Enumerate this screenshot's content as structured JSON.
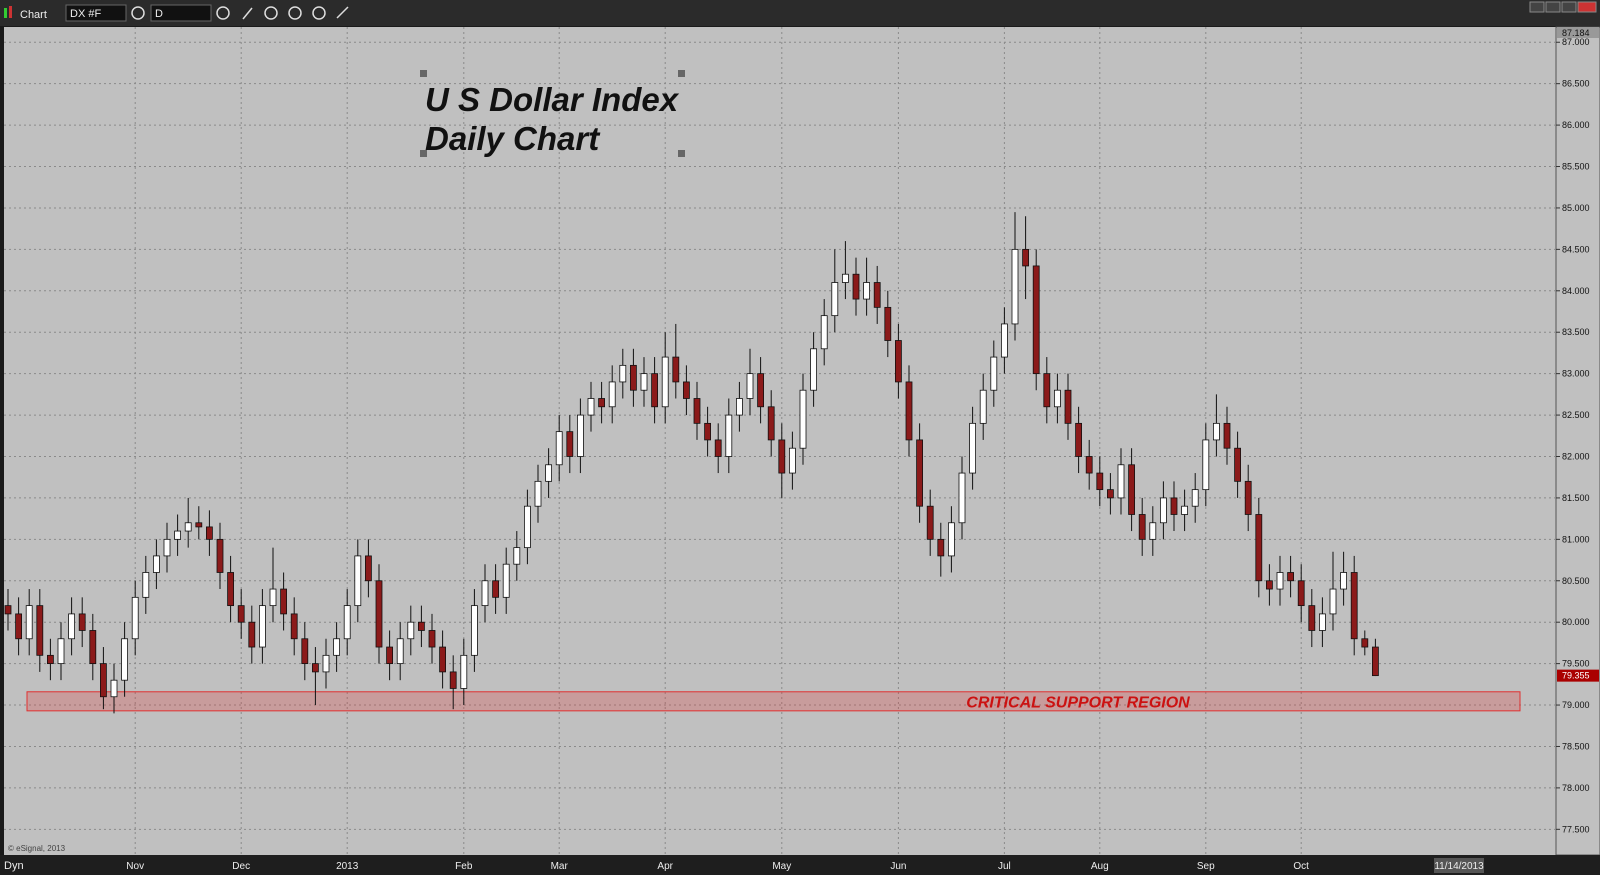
{
  "ui": {
    "window_title": "Chart",
    "symbol": "DX #F",
    "interval": "D",
    "mode": "Dyn",
    "copyright": "© eSignal, 2013",
    "date_box": "11/14/2013"
  },
  "chart_data": {
    "type": "candlestick",
    "title": "U S Dollar Index",
    "subtitle": "Daily Chart",
    "up_color": "#ffffff",
    "down_color": "#8b1a1a",
    "grid": true,
    "ylim": [
      77.19,
      87.184
    ],
    "yticks": [
      {
        "value": 77.5,
        "label": "77.500"
      },
      {
        "value": 78,
        "label": "78.000"
      },
      {
        "value": 78.5,
        "label": "78.500"
      },
      {
        "value": 79,
        "label": "79.000"
      },
      {
        "value": 79.5,
        "label": "79.500"
      },
      {
        "value": 80,
        "label": "80.000"
      },
      {
        "value": 80.5,
        "label": "80.500"
      },
      {
        "value": 81,
        "label": "81.000"
      },
      {
        "value": 81.5,
        "label": "81.500"
      },
      {
        "value": 82,
        "label": "82.000"
      },
      {
        "value": 82.5,
        "label": "82.500"
      },
      {
        "value": 83,
        "label": "83.000"
      },
      {
        "value": 83.5,
        "label": "83.500"
      },
      {
        "value": 84,
        "label": "84.000"
      },
      {
        "value": 84.5,
        "label": "84.500"
      },
      {
        "value": 85,
        "label": "85.000"
      },
      {
        "value": 85.5,
        "label": "85.500"
      },
      {
        "value": 86,
        "label": "86.000"
      },
      {
        "value": 86.5,
        "label": "86.500"
      },
      {
        "value": 87,
        "label": "87.000"
      }
    ],
    "top_marker": {
      "value": 87.184,
      "label": "87.184"
    },
    "last_price": {
      "value": 79.355,
      "label": "79.355"
    },
    "xticks": [
      {
        "value": 12,
        "label": "Nov"
      },
      {
        "value": 22,
        "label": "Dec"
      },
      {
        "value": 32,
        "label": "2013"
      },
      {
        "value": 43,
        "label": "Feb"
      },
      {
        "value": 52,
        "label": "Mar"
      },
      {
        "value": 62,
        "label": "Apr"
      },
      {
        "value": 73,
        "label": "May"
      },
      {
        "value": 84,
        "label": "Jun"
      },
      {
        "value": 94,
        "label": "Jul"
      },
      {
        "value": 103,
        "label": "Aug"
      },
      {
        "value": 113,
        "label": "Sep"
      },
      {
        "value": 122,
        "label": "Oct"
      }
    ],
    "support_zone": {
      "label": "CRITICAL SUPPORT REGION",
      "low": 78.93,
      "high": 79.16,
      "color": "#e03030"
    },
    "ohlc": [
      [
        80.2,
        80.4,
        79.9,
        80.1
      ],
      [
        80.1,
        80.3,
        79.6,
        79.8
      ],
      [
        79.8,
        80.4,
        79.6,
        80.2
      ],
      [
        80.2,
        80.4,
        79.4,
        79.6
      ],
      [
        79.6,
        79.8,
        79.3,
        79.5
      ],
      [
        79.5,
        80.0,
        79.3,
        79.8
      ],
      [
        79.8,
        80.3,
        79.6,
        80.1
      ],
      [
        80.1,
        80.3,
        79.7,
        79.9
      ],
      [
        79.9,
        80.1,
        79.3,
        79.5
      ],
      [
        79.5,
        79.7,
        78.95,
        79.1
      ],
      [
        79.1,
        79.5,
        78.9,
        79.3
      ],
      [
        79.3,
        80.0,
        79.1,
        79.8
      ],
      [
        79.8,
        80.5,
        79.6,
        80.3
      ],
      [
        80.3,
        80.8,
        80.1,
        80.6
      ],
      [
        80.6,
        81.0,
        80.4,
        80.8
      ],
      [
        80.8,
        81.2,
        80.6,
        81.0
      ],
      [
        81.0,
        81.3,
        80.8,
        81.1
      ],
      [
        81.1,
        81.5,
        80.9,
        81.2
      ],
      [
        81.2,
        81.4,
        81.0,
        81.15
      ],
      [
        81.15,
        81.35,
        80.8,
        81.0
      ],
      [
        81.0,
        81.2,
        80.4,
        80.6
      ],
      [
        80.6,
        80.8,
        80.0,
        80.2
      ],
      [
        80.2,
        80.4,
        79.8,
        80.0
      ],
      [
        80.0,
        80.2,
        79.5,
        79.7
      ],
      [
        79.7,
        80.4,
        79.5,
        80.2
      ],
      [
        80.2,
        80.9,
        80.0,
        80.4
      ],
      [
        80.4,
        80.6,
        79.9,
        80.1
      ],
      [
        80.1,
        80.3,
        79.6,
        79.8
      ],
      [
        79.8,
        80.0,
        79.3,
        79.5
      ],
      [
        79.5,
        79.7,
        79.0,
        79.4
      ],
      [
        79.4,
        79.8,
        79.2,
        79.6
      ],
      [
        79.6,
        80.0,
        79.4,
        79.8
      ],
      [
        79.8,
        80.4,
        79.6,
        80.2
      ],
      [
        80.2,
        81.0,
        80.0,
        80.8
      ],
      [
        80.8,
        81.0,
        80.3,
        80.5
      ],
      [
        80.5,
        80.7,
        79.5,
        79.7
      ],
      [
        79.7,
        79.9,
        79.3,
        79.5
      ],
      [
        79.5,
        80.0,
        79.3,
        79.8
      ],
      [
        79.8,
        80.2,
        79.6,
        80.0
      ],
      [
        80.0,
        80.2,
        79.7,
        79.9
      ],
      [
        79.9,
        80.1,
        79.5,
        79.7
      ],
      [
        79.7,
        79.9,
        79.2,
        79.4
      ],
      [
        79.4,
        79.6,
        78.95,
        79.2
      ],
      [
        79.2,
        79.8,
        79.0,
        79.6
      ],
      [
        79.6,
        80.4,
        79.4,
        80.2
      ],
      [
        80.2,
        80.7,
        80.0,
        80.5
      ],
      [
        80.5,
        80.7,
        80.1,
        80.3
      ],
      [
        80.3,
        80.9,
        80.1,
        80.7
      ],
      [
        80.7,
        81.1,
        80.5,
        80.9
      ],
      [
        80.9,
        81.6,
        80.7,
        81.4
      ],
      [
        81.4,
        81.9,
        81.2,
        81.7
      ],
      [
        81.7,
        82.1,
        81.5,
        81.9
      ],
      [
        81.9,
        82.5,
        81.7,
        82.3
      ],
      [
        82.3,
        82.5,
        81.8,
        82.0
      ],
      [
        82.0,
        82.7,
        81.8,
        82.5
      ],
      [
        82.5,
        82.9,
        82.3,
        82.7
      ],
      [
        82.7,
        82.9,
        82.4,
        82.6
      ],
      [
        82.6,
        83.1,
        82.4,
        82.9
      ],
      [
        82.9,
        83.3,
        82.7,
        83.1
      ],
      [
        83.1,
        83.3,
        82.6,
        82.8
      ],
      [
        82.8,
        83.2,
        82.6,
        83.0
      ],
      [
        83.0,
        83.2,
        82.4,
        82.6
      ],
      [
        82.6,
        83.5,
        82.4,
        83.2
      ],
      [
        83.2,
        83.6,
        82.7,
        82.9
      ],
      [
        82.9,
        83.1,
        82.5,
        82.7
      ],
      [
        82.7,
        82.9,
        82.2,
        82.4
      ],
      [
        82.4,
        82.6,
        82.0,
        82.2
      ],
      [
        82.2,
        82.4,
        81.8,
        82.0
      ],
      [
        82.0,
        82.7,
        81.8,
        82.5
      ],
      [
        82.5,
        82.9,
        82.3,
        82.7
      ],
      [
        82.7,
        83.3,
        82.5,
        83.0
      ],
      [
        83.0,
        83.2,
        82.4,
        82.6
      ],
      [
        82.6,
        82.8,
        82.0,
        82.2
      ],
      [
        82.2,
        82.4,
        81.5,
        81.8
      ],
      [
        81.8,
        82.3,
        81.6,
        82.1
      ],
      [
        82.1,
        83.0,
        81.9,
        82.8
      ],
      [
        82.8,
        83.5,
        82.6,
        83.3
      ],
      [
        83.3,
        83.9,
        83.1,
        83.7
      ],
      [
        83.7,
        84.5,
        83.5,
        84.1
      ],
      [
        84.1,
        84.6,
        83.9,
        84.2
      ],
      [
        84.2,
        84.4,
        83.7,
        83.9
      ],
      [
        83.9,
        84.4,
        83.7,
        84.1
      ],
      [
        84.1,
        84.3,
        83.6,
        83.8
      ],
      [
        83.8,
        84.0,
        83.2,
        83.4
      ],
      [
        83.4,
        83.6,
        82.7,
        82.9
      ],
      [
        82.9,
        83.1,
        82.0,
        82.2
      ],
      [
        82.2,
        82.4,
        81.2,
        81.4
      ],
      [
        81.4,
        81.6,
        80.8,
        81.0
      ],
      [
        81.0,
        81.2,
        80.55,
        80.8
      ],
      [
        80.8,
        81.4,
        80.6,
        81.2
      ],
      [
        81.2,
        82.0,
        81.0,
        81.8
      ],
      [
        81.8,
        82.6,
        81.6,
        82.4
      ],
      [
        82.4,
        83.0,
        82.2,
        82.8
      ],
      [
        82.8,
        83.4,
        82.6,
        83.2
      ],
      [
        83.2,
        83.8,
        83.0,
        83.6
      ],
      [
        83.6,
        84.95,
        83.4,
        84.5
      ],
      [
        84.5,
        84.9,
        83.9,
        84.3
      ],
      [
        84.3,
        84.5,
        82.8,
        83.0
      ],
      [
        83.0,
        83.2,
        82.4,
        82.6
      ],
      [
        82.6,
        83.0,
        82.4,
        82.8
      ],
      [
        82.8,
        83.0,
        82.2,
        82.4
      ],
      [
        82.4,
        82.6,
        81.8,
        82.0
      ],
      [
        82.0,
        82.2,
        81.6,
        81.8
      ],
      [
        81.8,
        82.0,
        81.4,
        81.6
      ],
      [
        81.6,
        81.8,
        81.3,
        81.5
      ],
      [
        81.5,
        82.1,
        81.3,
        81.9
      ],
      [
        81.9,
        82.1,
        81.1,
        81.3
      ],
      [
        81.3,
        81.5,
        80.8,
        81.0
      ],
      [
        81.0,
        81.4,
        80.8,
        81.2
      ],
      [
        81.2,
        81.7,
        81.0,
        81.5
      ],
      [
        81.5,
        81.7,
        81.1,
        81.3
      ],
      [
        81.3,
        81.6,
        81.1,
        81.4
      ],
      [
        81.4,
        81.8,
        81.2,
        81.6
      ],
      [
        81.6,
        82.4,
        81.4,
        82.2
      ],
      [
        82.2,
        82.75,
        82.0,
        82.4
      ],
      [
        82.4,
        82.6,
        81.9,
        82.1
      ],
      [
        82.1,
        82.3,
        81.5,
        81.7
      ],
      [
        81.7,
        81.9,
        81.1,
        81.3
      ],
      [
        81.3,
        81.5,
        80.3,
        80.5
      ],
      [
        80.5,
        80.7,
        80.2,
        80.4
      ],
      [
        80.4,
        80.8,
        80.2,
        80.6
      ],
      [
        80.6,
        80.8,
        80.3,
        80.5
      ],
      [
        80.5,
        80.7,
        80.0,
        80.2
      ],
      [
        80.2,
        80.4,
        79.7,
        79.9
      ],
      [
        79.9,
        80.3,
        79.7,
        80.1
      ],
      [
        80.1,
        80.85,
        79.9,
        80.4
      ],
      [
        80.4,
        80.85,
        80.2,
        80.6
      ],
      [
        80.6,
        80.8,
        79.6,
        79.8
      ],
      [
        79.8,
        79.9,
        79.6,
        79.7
      ],
      [
        79.7,
        79.8,
        79.35,
        79.355
      ]
    ]
  }
}
